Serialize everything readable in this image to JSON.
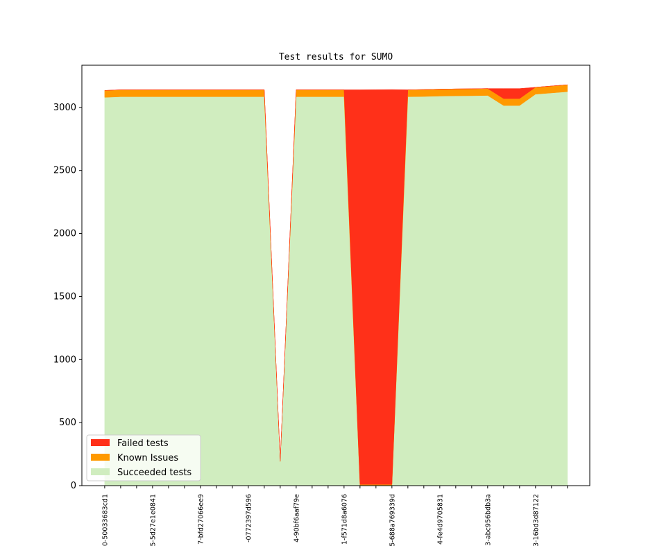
{
  "chart_data": {
    "type": "area",
    "stacked": true,
    "title": "Test results for SUMO",
    "xlabel": "",
    "ylabel": "",
    "ylim": [
      0,
      3335
    ],
    "xlim": [
      -1.43,
      30.4
    ],
    "yticks": [
      0,
      500,
      1000,
      1500,
      2000,
      2500,
      3000
    ],
    "x": [
      0,
      1,
      2,
      3,
      4,
      5,
      6,
      7,
      8,
      9,
      10,
      11,
      12,
      13,
      14,
      15,
      16,
      17,
      18,
      19,
      20,
      21,
      22,
      23,
      24,
      25,
      26,
      27,
      28,
      29
    ],
    "xtick_labels": [
      {
        "index": 0,
        "label": "0-50033683cd1"
      },
      {
        "index": 3,
        "label": "5-5d27e1e0841"
      },
      {
        "index": 6,
        "label": "7-bfd27066ee9"
      },
      {
        "index": 9,
        "label": "-0772397d596"
      },
      {
        "index": 12,
        "label": "4-90bf6aaf79e"
      },
      {
        "index": 15,
        "label": "1-f571d8a6076"
      },
      {
        "index": 18,
        "label": "5-688a769339d"
      },
      {
        "index": 21,
        "label": "4-fe4d9705831"
      },
      {
        "index": 24,
        "label": "3-abc956bdb3a"
      },
      {
        "index": 27,
        "label": "3-16bd3d87122"
      }
    ],
    "series": [
      {
        "name": "Succeeded tests",
        "color": "#d0edbf",
        "values": [
          3080,
          3085,
          3085,
          3085,
          3085,
          3085,
          3085,
          3085,
          3085,
          3085,
          3085,
          190,
          3085,
          3085,
          3085,
          3085,
          0,
          0,
          0,
          3085,
          3087,
          3090,
          3092,
          3093,
          3095,
          3015,
          3015,
          3105,
          3115,
          3125
        ]
      },
      {
        "name": "Known Issues",
        "color": "#ff9900",
        "values": [
          55,
          55,
          55,
          55,
          55,
          55,
          55,
          55,
          55,
          55,
          55,
          5,
          55,
          55,
          55,
          55,
          10,
          10,
          10,
          55,
          55,
          55,
          55,
          55,
          55,
          55,
          55,
          55,
          55,
          55
        ]
      },
      {
        "name": "Failed tests",
        "color": "#ff3019",
        "values": [
          0,
          0,
          0,
          0,
          0,
          0,
          0,
          0,
          0,
          0,
          0,
          0,
          0,
          0,
          0,
          0,
          3130,
          3131,
          3132,
          0,
          0,
          0,
          0,
          0,
          0,
          80,
          80,
          0,
          0,
          0
        ]
      }
    ],
    "legend": {
      "placement": "lower-left",
      "entries": [
        "Failed tests",
        "Known Issues",
        "Succeeded tests"
      ]
    },
    "grid": false
  }
}
